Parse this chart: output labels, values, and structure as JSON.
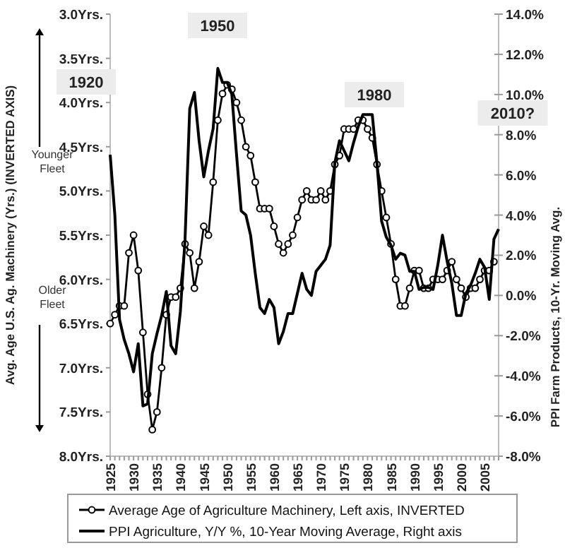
{
  "chart_data": {
    "type": "line",
    "ylabel": "Avg. Age U.S. Ag. Machinery (Yrs.)  (INVERTED AXIS)",
    "y2label": "PPI Farm Products, 10-Yr. Moving Avg.",
    "annotations": [
      "1920",
      "1950",
      "1980",
      "2010?",
      "Younger Fleet",
      "Older Fleet"
    ],
    "xlim": [
      1925,
      2008
    ],
    "xticks": [
      1925,
      {
        "value": 1926,
        "label": null
      },
      {
        "value": 1927,
        "label": null
      },
      {
        "value": 1928,
        "label": null
      },
      {
        "value": 1929,
        "label": null
      },
      1930,
      {
        "value": 1931,
        "label": null
      },
      {
        "value": 1932,
        "label": null
      },
      {
        "value": 1933,
        "label": null
      },
      {
        "value": 1934,
        "label": null
      },
      1935,
      {
        "value": 1936,
        "label": null
      },
      {
        "value": 1937,
        "label": null
      },
      {
        "value": 1938,
        "label": null
      },
      {
        "value": 1939,
        "label": null
      },
      1940,
      {
        "value": 1941,
        "label": null
      },
      {
        "value": 1942,
        "label": null
      },
      {
        "value": 1943,
        "label": null
      },
      {
        "value": 1944,
        "label": null
      },
      1945,
      {
        "value": 1946,
        "label": null
      },
      {
        "value": 1947,
        "label": null
      },
      {
        "value": 1948,
        "label": null
      },
      {
        "value": 1949,
        "label": null
      },
      1950,
      {
        "value": 1951,
        "label": null
      },
      {
        "value": 1952,
        "label": null
      },
      {
        "value": 1953,
        "label": null
      },
      {
        "value": 1954,
        "label": null
      },
      1955,
      {
        "value": 1956,
        "label": null
      },
      {
        "value": 1957,
        "label": null
      },
      {
        "value": 1958,
        "label": null
      },
      {
        "value": 1959,
        "label": null
      },
      1960,
      {
        "value": 1961,
        "label": null
      },
      {
        "value": 1962,
        "label": null
      },
      {
        "value": 1963,
        "label": null
      },
      {
        "value": 1964,
        "label": null
      },
      1965,
      {
        "value": 1966,
        "label": null
      },
      {
        "value": 1967,
        "label": null
      },
      {
        "value": 1968,
        "label": null
      },
      {
        "value": 1969,
        "label": null
      },
      1970,
      {
        "value": 1971,
        "label": null
      },
      {
        "value": 1972,
        "label": null
      },
      {
        "value": 1973,
        "label": null
      },
      {
        "value": 1974,
        "label": null
      },
      1975,
      {
        "value": 1976,
        "label": null
      },
      {
        "value": 1977,
        "label": null
      },
      {
        "value": 1978,
        "label": null
      },
      {
        "value": 1979,
        "label": null
      },
      1980,
      {
        "value": 1981,
        "label": null
      },
      {
        "value": 1982,
        "label": null
      },
      {
        "value": 1983,
        "label": null
      },
      {
        "value": 1984,
        "label": null
      },
      1985,
      {
        "value": 1986,
        "label": null
      },
      {
        "value": 1987,
        "label": null
      },
      {
        "value": 1988,
        "label": null
      },
      {
        "value": 1989,
        "label": null
      },
      1990,
      {
        "value": 1991,
        "label": null
      },
      {
        "value": 1992,
        "label": null
      },
      {
        "value": 1993,
        "label": null
      },
      {
        "value": 1994,
        "label": null
      },
      1995,
      {
        "value": 1996,
        "label": null
      },
      {
        "value": 1997,
        "label": null
      },
      {
        "value": 1998,
        "label": null
      },
      {
        "value": 1999,
        "label": null
      },
      2000,
      {
        "value": 2001,
        "label": null
      },
      {
        "value": 2002,
        "label": null
      },
      {
        "value": 2003,
        "label": null
      },
      {
        "value": 2004,
        "label": null
      },
      2005,
      {
        "value": 2006,
        "label": null
      },
      {
        "value": 2007,
        "label": null
      },
      {
        "value": 2008,
        "label": null
      }
    ],
    "ylim": [
      8,
      3
    ],
    "yticks": [
      {
        "value": 3,
        "label": "3.0Yrs."
      },
      {
        "value": 3.5,
        "label": "3.5Yrs."
      },
      {
        "value": 4,
        "label": "4.0Yrs."
      },
      {
        "value": 4.5,
        "label": "4.5Yrs."
      },
      {
        "value": 5,
        "label": "5.0Yrs."
      },
      {
        "value": 5.5,
        "label": "5.5Yrs."
      },
      {
        "value": 6,
        "label": "6.0Yrs."
      },
      {
        "value": 6.5,
        "label": "6.5Yrs."
      },
      {
        "value": 7,
        "label": "7.0Yrs."
      },
      {
        "value": 7.5,
        "label": "7.5Yrs."
      },
      {
        "value": 8,
        "label": "8.0Yrs."
      }
    ],
    "y2lim": [
      -8,
      14
    ],
    "y2ticks": [
      {
        "value": -8,
        "label": "-8.0%"
      },
      {
        "value": -6,
        "label": "-6.0%"
      },
      {
        "value": -4,
        "label": "-4.0%"
      },
      {
        "value": -2,
        "label": "-2.0%"
      },
      {
        "value": 0,
        "label": "0.0%"
      },
      {
        "value": 2,
        "label": "2.0%"
      },
      {
        "value": 4,
        "label": "4.0%"
      },
      {
        "value": 6,
        "label": "6.0%"
      },
      {
        "value": 8,
        "label": "8.0%"
      },
      {
        "value": 10,
        "label": "10.0%"
      },
      {
        "value": 12,
        "label": "12.0%"
      },
      {
        "value": 14,
        "label": "14.0%"
      }
    ],
    "legend": "bottom",
    "line_style": "solid",
    "series": [
      {
        "name": "Average Age of Agriculture Machinery, Left axis, INVERTED",
        "color": "#000000",
        "marker": "circle",
        "x": [
          1925,
          1926,
          1927,
          1928,
          1929,
          1930,
          1931,
          1932,
          1933,
          1934,
          1935,
          1936,
          1937,
          1938,
          1939,
          1940,
          1941,
          1942,
          1943,
          1944,
          1945,
          1946,
          1947,
          1948,
          1949,
          1950,
          1951,
          1952,
          1953,
          1954,
          1955,
          1956,
          1957,
          1958,
          1959,
          1960,
          1961,
          1962,
          1963,
          1964,
          1965,
          1966,
          1967,
          1968,
          1969,
          1970,
          1971,
          1972,
          1973,
          1974,
          1975,
          1976,
          1977,
          1978,
          1979,
          1980,
          1981,
          1982,
          1983,
          1984,
          1985,
          1986,
          1987,
          1988,
          1989,
          1990,
          1991,
          1992,
          1993,
          1994,
          1995,
          1996,
          1997,
          1998,
          1999,
          2000,
          2001,
          2002,
          2003,
          2004,
          2005,
          2006,
          2007
        ],
        "values": [
          6.5,
          6.4,
          6.3,
          6.3,
          5.7,
          5.5,
          5.9,
          6.6,
          7.3,
          7.7,
          7.5,
          7.0,
          6.4,
          6.2,
          6.2,
          6.1,
          5.6,
          5.7,
          6.1,
          5.8,
          5.4,
          5.5,
          4.9,
          4.2,
          3.9,
          3.8,
          3.85,
          4.0,
          4.2,
          4.5,
          4.6,
          4.9,
          5.2,
          5.2,
          5.2,
          5.4,
          5.6,
          5.7,
          5.6,
          5.5,
          5.3,
          5.1,
          5.0,
          5.1,
          5.1,
          5.0,
          5.1,
          5.0,
          4.7,
          4.6,
          4.3,
          4.3,
          4.3,
          4.2,
          4.2,
          4.3,
          4.4,
          4.7,
          5.0,
          5.3,
          5.6,
          6.0,
          6.3,
          6.3,
          6.1,
          5.9,
          5.9,
          6.1,
          6.1,
          6.0,
          6.0,
          6.0,
          5.9,
          5.8,
          6.0,
          6.1,
          6.2,
          6.1,
          6.1,
          6.0,
          5.9,
          5.9,
          5.8
        ]
      },
      {
        "name": "PPI Agriculture, Y/Y %, 10-Year Moving Average, Right axis",
        "color": "#000000",
        "marker": "none",
        "axis": "y2",
        "x": [
          1925,
          1926,
          1927,
          1928,
          1929,
          1930,
          1931,
          1932,
          1933,
          1934,
          1935,
          1936,
          1937,
          1938,
          1939,
          1940,
          1941,
          1942,
          1943,
          1944,
          1945,
          1946,
          1947,
          1948,
          1949,
          1950,
          1951,
          1952,
          1953,
          1954,
          1955,
          1956,
          1957,
          1958,
          1959,
          1960,
          1961,
          1962,
          1963,
          1964,
          1965,
          1966,
          1967,
          1968,
          1969,
          1970,
          1971,
          1972,
          1973,
          1974,
          1975,
          1976,
          1977,
          1978,
          1979,
          1980,
          1981,
          1982,
          1983,
          1984,
          1985,
          1986,
          1987,
          1988,
          1989,
          1990,
          1991,
          1992,
          1993,
          1994,
          1995,
          1996,
          1997,
          1998,
          1999,
          2000,
          2001,
          2002,
          2003,
          2004,
          2005,
          2006,
          2007,
          2008
        ],
        "values": [
          7.0,
          4.0,
          -1.2,
          -2.2,
          -2.9,
          -3.8,
          -2.4,
          -5.5,
          -5.4,
          -2.9,
          -1.9,
          -1.0,
          0.2,
          -2.5,
          -2.9,
          -0.8,
          2.8,
          9.3,
          10.1,
          7.7,
          5.9,
          7.2,
          8.3,
          11.3,
          10.6,
          10.6,
          10.0,
          7.0,
          4.2,
          4.0,
          3.0,
          1.1,
          -0.6,
          -0.9,
          -0.2,
          -0.6,
          -2.4,
          -1.8,
          -0.9,
          -0.9,
          0.1,
          1.1,
          0.3,
          0.0,
          1.2,
          1.5,
          1.8,
          2.5,
          6.6,
          7.7,
          7.2,
          6.7,
          7.6,
          8.4,
          9.0,
          9.0,
          9.0,
          6.6,
          3.7,
          2.9,
          2.5,
          1.8,
          2.1,
          2.0,
          1.2,
          1.2,
          0.3,
          0.4,
          0.4,
          0.3,
          1.5,
          3.0,
          1.7,
          0.6,
          -1.0,
          -1.0,
          0.1,
          0.5,
          1.1,
          1.8,
          1.4,
          -0.2,
          2.8,
          3.3
        ]
      }
    ]
  }
}
